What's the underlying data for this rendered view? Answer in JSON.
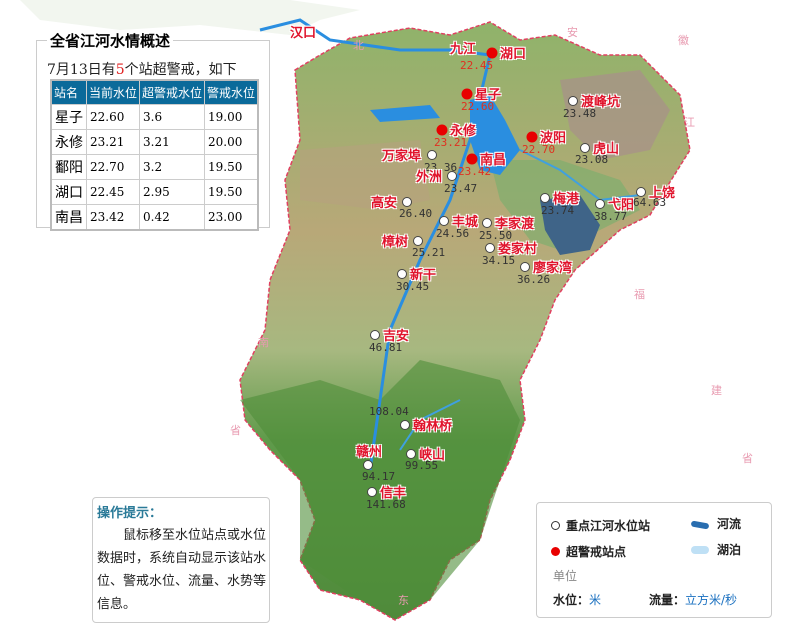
{
  "map": {
    "cities": [
      "汉口",
      "九江"
    ],
    "provinces": [
      "北",
      "安",
      "徽",
      "江",
      "福",
      "建",
      "省",
      "南",
      "省",
      "东"
    ],
    "colors": {
      "alert": "#e80000",
      "normal": "#ffffff",
      "label": "#e0142c"
    },
    "stations": [
      {
        "name": "湖口",
        "value": "22.45",
        "alert": true
      },
      {
        "name": "星子",
        "value": "22.60",
        "alert": true
      },
      {
        "name": "永修",
        "value": "23.21",
        "alert": true
      },
      {
        "name": "波阳",
        "value": "22.70",
        "alert": true
      },
      {
        "name": "南昌",
        "value": "23.42",
        "alert": true
      },
      {
        "name": "渡峰坑",
        "value": "23.48",
        "alert": false
      },
      {
        "name": "虎山",
        "value": "23.08",
        "alert": false
      },
      {
        "name": "万家埠",
        "value": "23.36",
        "alert": false
      },
      {
        "name": "外洲",
        "value": "23.47",
        "alert": false
      },
      {
        "name": "梅港",
        "value": "23.74",
        "alert": false
      },
      {
        "name": "弋阳",
        "value": "38.77",
        "alert": false
      },
      {
        "name": "上饶",
        "value": "64.63",
        "alert": false
      },
      {
        "name": "高安",
        "value": "26.40",
        "alert": false
      },
      {
        "name": "丰城",
        "value": "24.56",
        "alert": false
      },
      {
        "name": "李家渡",
        "value": "25.50",
        "alert": false
      },
      {
        "name": "樟树",
        "value": "25.21",
        "alert": false
      },
      {
        "name": "娄家村",
        "value": "34.15",
        "alert": false
      },
      {
        "name": "廖家湾",
        "value": "36.26",
        "alert": false
      },
      {
        "name": "新干",
        "value": "30.45",
        "alert": false
      },
      {
        "name": "吉安",
        "value": "46.81",
        "alert": false
      },
      {
        "name": "翰林桥",
        "value": "108.04",
        "alert": false
      },
      {
        "name": "赣州",
        "value": "94.17",
        "alert": false
      },
      {
        "name": "峡山",
        "value": "99.55",
        "alert": false
      },
      {
        "name": "信丰",
        "value": "141.68",
        "alert": false
      }
    ]
  },
  "summary": {
    "title": "全省江河水情概述",
    "sub_pre": "7月13日有",
    "sub_count": "5",
    "sub_post": "个站超警戒，如下",
    "headers": [
      "站名",
      "当前水位",
      "超警戒水位",
      "警戒水位"
    ],
    "rows": [
      [
        "星子",
        "22.60",
        "3.6",
        "19.00"
      ],
      [
        "永修",
        "23.21",
        "3.21",
        "20.00"
      ],
      [
        "鄱阳",
        "22.70",
        "3.2",
        "19.50"
      ],
      [
        "湖口",
        "22.45",
        "2.95",
        "19.50"
      ],
      [
        "南昌",
        "23.42",
        "0.42",
        "23.00"
      ]
    ]
  },
  "tip": {
    "title": "操作提示：",
    "text": "鼠标移至水位站点或水位数据时，系统自动显示该站水位、警戒水位、流量、水势等信息。"
  },
  "legend": {
    "station": "重点江河水位站",
    "alert": "超警戒站点",
    "river": "河流",
    "lake": "湖泊",
    "unit": "单位",
    "level_label": "水位：",
    "level_unit": "米",
    "flow_label": "流量：",
    "flow_unit": "立方米/秒"
  }
}
